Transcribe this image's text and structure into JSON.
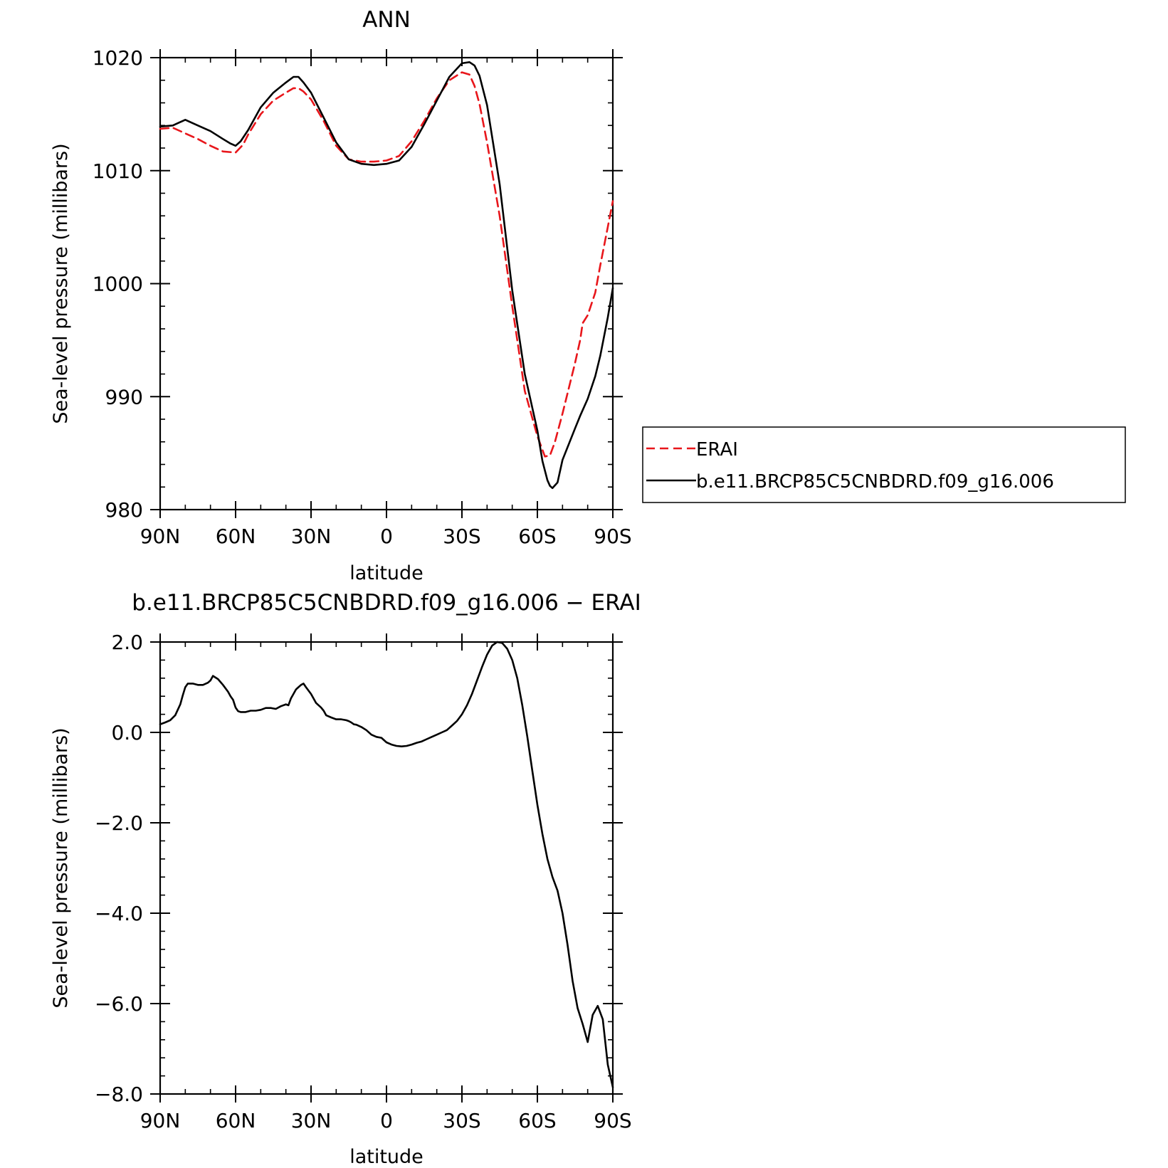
{
  "chart_data": [
    {
      "type": "line",
      "title": "ANN",
      "xlabel": "latitude",
      "ylabel": "Sea-level pressure (millibars)",
      "xlim": [
        90,
        -90
      ],
      "ylim": [
        980,
        1020
      ],
      "x_ticks": [
        90,
        60,
        30,
        0,
        -30,
        -60,
        -90
      ],
      "x_tick_labels": [
        "90N",
        "60N",
        "30N",
        "0",
        "30S",
        "60S",
        "90S"
      ],
      "y_ticks": [
        980,
        990,
        1000,
        1010,
        1020
      ],
      "y_tick_labels": [
        "980",
        "990",
        "1000",
        "1010",
        "1020"
      ],
      "legend_position": "right",
      "series": [
        {
          "name": "ERAI",
          "color": "#e8161b",
          "dash": "dashed",
          "x": [
            90,
            85,
            80,
            75,
            70,
            65,
            60,
            57,
            55,
            50,
            45,
            40,
            37,
            35,
            33,
            30,
            25,
            20,
            15,
            10,
            5,
            0,
            -5,
            -10,
            -15,
            -20,
            -25,
            -30,
            -33,
            -35,
            -37,
            -40,
            -45,
            -50,
            -55,
            -60,
            -63,
            -65,
            -67,
            -70,
            -75,
            -77,
            -78,
            -80,
            -83,
            -85,
            -88,
            -90
          ],
          "y": [
            1013.7,
            1013.8,
            1013.3,
            1012.8,
            1012.2,
            1011.7,
            1011.6,
            1012.3,
            1013.2,
            1015.0,
            1016.2,
            1016.9,
            1017.3,
            1017.3,
            1017.0,
            1016.3,
            1014.4,
            1012.2,
            1011.0,
            1010.8,
            1010.8,
            1010.9,
            1011.3,
            1012.6,
            1014.4,
            1016.4,
            1018.0,
            1018.7,
            1018.5,
            1017.5,
            1015.9,
            1012.5,
            1006.0,
            998.0,
            990.5,
            986.5,
            984.7,
            984.8,
            986.0,
            988.5,
            993.0,
            995.0,
            996.5,
            997.2,
            999.2,
            1001.6,
            1005.0,
            1007.3
          ]
        },
        {
          "name": "b.e11.BRCP85C5CNBDRD.f09_g16.006",
          "color": "#000000",
          "dash": "solid",
          "x": [
            90,
            85,
            80,
            75,
            70,
            65,
            62,
            60,
            58,
            55,
            50,
            45,
            40,
            37,
            35,
            33,
            30,
            25,
            20,
            15,
            10,
            5,
            0,
            -5,
            -10,
            -15,
            -20,
            -25,
            -30,
            -33,
            -35,
            -37,
            -40,
            -45,
            -50,
            -55,
            -60,
            -62,
            -64,
            -65,
            -66,
            -68,
            -70,
            -75,
            -77,
            -80,
            -83,
            -85,
            -88,
            -90
          ],
          "y": [
            1013.9,
            1014.0,
            1014.5,
            1014.0,
            1013.5,
            1012.8,
            1012.4,
            1012.2,
            1012.6,
            1013.6,
            1015.6,
            1016.9,
            1017.8,
            1018.3,
            1018.3,
            1017.8,
            1016.9,
            1014.7,
            1012.5,
            1011.0,
            1010.6,
            1010.5,
            1010.6,
            1010.9,
            1012.1,
            1014.1,
            1016.2,
            1018.3,
            1019.5,
            1019.6,
            1019.3,
            1018.4,
            1015.8,
            1008.8,
            999.4,
            992.0,
            987.0,
            984.3,
            982.6,
            982.1,
            981.9,
            982.4,
            984.4,
            987.2,
            988.3,
            989.8,
            991.8,
            993.6,
            997.0,
            999.6
          ]
        }
      ]
    },
    {
      "type": "line",
      "title": "b.e11.BRCP85C5CNBDRD.f09_g16.006 − ERAI",
      "xlabel": "latitude",
      "ylabel": "Sea-level pressure (millibars)",
      "xlim": [
        90,
        -90
      ],
      "ylim": [
        -8.0,
        2.0
      ],
      "x_ticks": [
        90,
        60,
        30,
        0,
        -30,
        -60,
        -90
      ],
      "x_tick_labels": [
        "90N",
        "60N",
        "30N",
        "0",
        "30S",
        "60S",
        "90S"
      ],
      "y_ticks": [
        -8.0,
        -6.0,
        -4.0,
        -2.0,
        0.0,
        2.0
      ],
      "y_tick_labels": [
        "−8.0",
        "−6.0",
        "−4.0",
        "−2.0",
        "0.0",
        "2.0"
      ],
      "series": [
        {
          "color": "#000000",
          "dash": "solid",
          "x": [
            90,
            88,
            86,
            84,
            82,
            81,
            80,
            79,
            77,
            75,
            73,
            71,
            70,
            69,
            67,
            65,
            63,
            62,
            61,
            60,
            59,
            58,
            56,
            54,
            52,
            50,
            48,
            46,
            44,
            42,
            40,
            39,
            38,
            37,
            36,
            35,
            34,
            33,
            32,
            30,
            28,
            26,
            25,
            24,
            22,
            20,
            18,
            16,
            15,
            14,
            13,
            12,
            10,
            8,
            6,
            4,
            2,
            0,
            -2,
            -4,
            -6,
            -8,
            -10,
            -12,
            -14,
            -16,
            -18,
            -20,
            -22,
            -24,
            -26,
            -28,
            -30,
            -32,
            -34,
            -36,
            -38,
            -40,
            -42,
            -44,
            -46,
            -48,
            -50,
            -52,
            -54,
            -56,
            -58,
            -60,
            -62,
            -64,
            -66,
            -68,
            -70,
            -72,
            -74,
            -76,
            -78,
            -80,
            -82,
            -84,
            -86,
            -88,
            -90
          ],
          "y": [
            0.18,
            0.22,
            0.27,
            0.38,
            0.62,
            0.82,
            1.0,
            1.08,
            1.08,
            1.05,
            1.05,
            1.1,
            1.15,
            1.25,
            1.18,
            1.05,
            0.9,
            0.8,
            0.72,
            0.55,
            0.47,
            0.45,
            0.45,
            0.48,
            0.48,
            0.5,
            0.54,
            0.54,
            0.52,
            0.58,
            0.62,
            0.6,
            0.75,
            0.85,
            0.95,
            1.0,
            1.05,
            1.08,
            1.0,
            0.85,
            0.65,
            0.55,
            0.48,
            0.38,
            0.33,
            0.29,
            0.29,
            0.27,
            0.25,
            0.22,
            0.18,
            0.17,
            0.12,
            0.05,
            -0.05,
            -0.1,
            -0.12,
            -0.22,
            -0.27,
            -0.3,
            -0.31,
            -0.3,
            -0.27,
            -0.23,
            -0.2,
            -0.15,
            -0.1,
            -0.05,
            0.0,
            0.05,
            0.15,
            0.25,
            0.4,
            0.6,
            0.85,
            1.15,
            1.45,
            1.72,
            1.92,
            2.0,
            1.98,
            1.85,
            1.6,
            1.2,
            0.6,
            -0.1,
            -0.85,
            -1.6,
            -2.25,
            -2.8,
            -3.2,
            -3.5,
            -4.0,
            -4.7,
            -5.5,
            -6.1,
            -6.45,
            -6.85,
            -6.25,
            -6.05,
            -6.35,
            -7.35,
            -7.85
          ]
        }
      ]
    }
  ]
}
